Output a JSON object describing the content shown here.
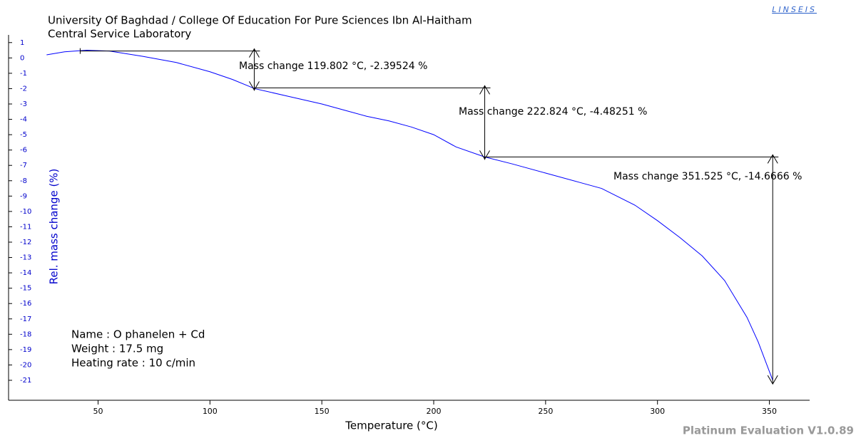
{
  "chart_data": {
    "type": "line",
    "title": "University Of Baghdad / College Of Education For Pure Sciences Ibn Al-Haitham",
    "subtitle": "Central Service Laboratory",
    "logo": "LINSEIS",
    "footer": "Platinum Evaluation V1.0.89",
    "x_label": "Temperature (°C)",
    "y_label": "Rel. mass change (%)",
    "info": [
      "Name : O phanelen + Cd",
      "Weight :  17.5 mg",
      "Heating rate : 10 c/min"
    ],
    "xlim": [
      10,
      368
    ],
    "ylim": [
      -22.3,
      1.5
    ],
    "xticks": [
      50,
      100,
      150,
      200,
      250,
      300,
      350
    ],
    "yticks": [
      1,
      0,
      -1,
      -2,
      -3,
      -4,
      -5,
      -6,
      -7,
      -8,
      -9,
      -10,
      -11,
      -12,
      -13,
      -14,
      -15,
      -16,
      -17,
      -18,
      -19,
      -20,
      -21
    ],
    "series": [
      {
        "color": "#0000ff",
        "x": [
          27,
          35,
          45,
          55,
          70,
          85,
          100,
          110,
          120,
          135,
          150,
          160,
          170,
          180,
          190,
          200,
          210,
          222.8,
          235,
          250,
          265,
          275,
          290,
          300,
          310,
          320,
          330,
          335,
          340,
          345,
          351.5
        ],
        "values": [
          0.2,
          0.4,
          0.5,
          0.45,
          0.1,
          -0.3,
          -0.9,
          -1.4,
          -2.0,
          -2.5,
          -3.0,
          -3.4,
          -3.8,
          -4.1,
          -4.5,
          -5.0,
          -5.8,
          -6.45,
          -6.9,
          -7.5,
          -8.1,
          -8.5,
          -9.6,
          -10.6,
          -11.7,
          -12.9,
          -14.5,
          -15.7,
          -16.9,
          -18.5,
          -21.0
        ]
      }
    ],
    "steps": [
      {
        "label": "Mass change 119.802 °C,  -2.39524 %",
        "start": 42,
        "x": 119.8,
        "top": 0.45,
        "bottom": -1.95
      },
      {
        "label": "Mass change 222.824 °C,  -4.48251 %",
        "start": 119.8,
        "x": 222.8,
        "top": -1.95,
        "bottom": -6.45
      },
      {
        "label": "Mass change 351.525 °C,  -14.6666 %",
        "start": 222.8,
        "x": 351.5,
        "top": -6.45,
        "bottom": -21.1
      }
    ]
  }
}
